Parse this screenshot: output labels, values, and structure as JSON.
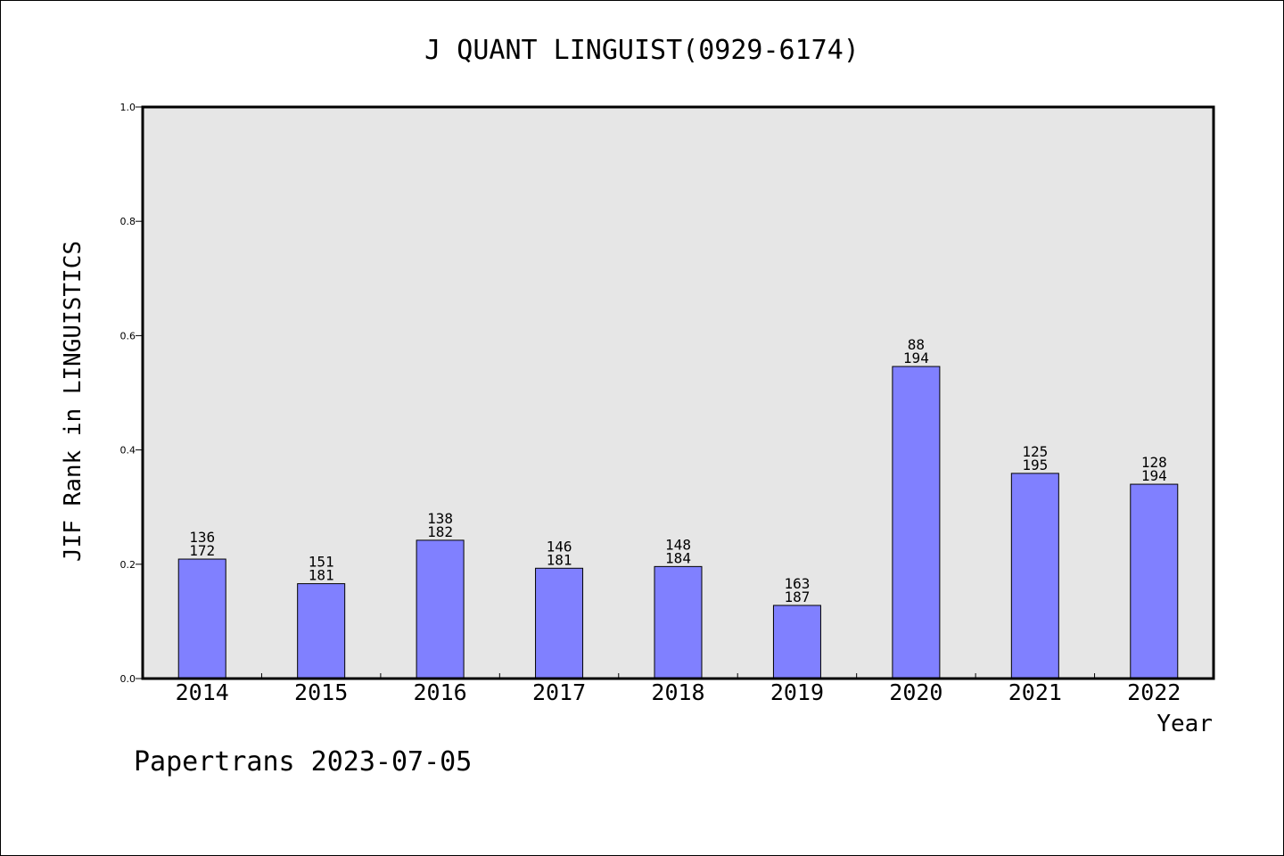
{
  "chart_data": {
    "type": "bar",
    "title": "J QUANT LINGUIST(0929-6174)",
    "xlabel": "Year",
    "ylabel": "JIF Rank in LINGUISTICS",
    "ylim": [
      0,
      1.0
    ],
    "yticks": [
      "0.0",
      "0.2",
      "0.4",
      "0.6",
      "0.8",
      "1.0"
    ],
    "categories": [
      "2014",
      "2015",
      "2016",
      "2017",
      "2018",
      "2019",
      "2020",
      "2021",
      "2022"
    ],
    "values": [
      0.209,
      0.166,
      0.242,
      0.193,
      0.196,
      0.128,
      0.546,
      0.359,
      0.34
    ],
    "ranks": [
      "136",
      "151",
      "138",
      "146",
      "148",
      "163",
      "88",
      "125",
      "128"
    ],
    "totals": [
      "172",
      "181",
      "182",
      "181",
      "184",
      "187",
      "194",
      "195",
      "194"
    ],
    "bar_color": "#8080ff",
    "plot_background": "#e6e6e6",
    "grid": false,
    "legend": "none"
  },
  "footer": "Papertrans 2023-07-05"
}
